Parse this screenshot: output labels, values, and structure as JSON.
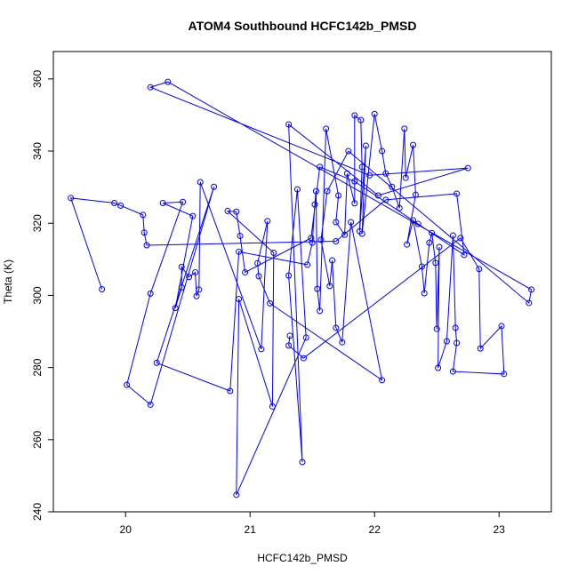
{
  "chart_data": {
    "type": "line",
    "title": "ATOM4 Southbound HCFC142b_PMSD",
    "x_label": "HCFC142b_PMSD",
    "y_label": "Theta (K)",
    "x": [
      19.81,
      19.56,
      19.91,
      19.96,
      20.14,
      20.15,
      20.17,
      21.69,
      22.09,
      22.66,
      22.72,
      22.35,
      21.84,
      21.56,
      21.49,
      20.96,
      20.92,
      20.89,
      20.82,
      21.19,
      21.18,
      20.91,
      20.89,
      21.45,
      21.38,
      21.31,
      21.42,
      21.31,
      22.03,
      22.75,
      21.96,
      20.2,
      20.34,
      23.26,
      23.24,
      21.79,
      21.62,
      21.57,
      21.64,
      21.66,
      21.69,
      21.74,
      21.81,
      22.06,
      21.16,
      21.07,
      21.06,
      21.14,
      21.09,
      20.6,
      20.59,
      20.57,
      20.56,
      20.51,
      20.45,
      20.45,
      20.4,
      20.54,
      20.3,
      20.46,
      20.2,
      20.01,
      20.2,
      20.71,
      20.25,
      20.84,
      20.91,
      21.46,
      21.5,
      21.52,
      21.53,
      21.54,
      21.56,
      21.61,
      21.71,
      21.69,
      21.76,
      21.78,
      21.84,
      21.84,
      21.89,
      21.9,
      21.88,
      21.93,
      21.9,
      22.0,
      22.06,
      22.09,
      22.14,
      22.2,
      22.24,
      22.25,
      22.31,
      22.33,
      22.26,
      22.31,
      22.38,
      22.4,
      22.44,
      22.46,
      22.49,
      22.5,
      22.52,
      22.51,
      22.58,
      22.63,
      22.65,
      22.66,
      22.63,
      23.04,
      23.02,
      22.85,
      22.84,
      22.69,
      21.43,
      21.31,
      21.32
    ],
    "series": [
      {
        "color": "#0000ff",
        "values": [
          301.7,
          327.0,
          325.6,
          324.9,
          322.3,
          317.4,
          313.9,
          315.0,
          326.5,
          328.2,
          311.2,
          319.8,
          331.6,
          335.6,
          315.9,
          306.4,
          316.5,
          323.2,
          323.4,
          311.8,
          269.2,
          299.0,
          244.7,
          288.3,
          329.4,
          305.5,
          253.8,
          347.4,
          327.7,
          335.3,
          333.3,
          357.7,
          359.2,
          301.6,
          297.9,
          340.0,
          328.9,
          315.4,
          302.6,
          309.7,
          291.0,
          287.0,
          320.3,
          276.5,
          297.8,
          305.3,
          308.9,
          320.6,
          285.1,
          331.4,
          301.6,
          299.8,
          306.4,
          305.1,
          307.9,
          302.2,
          296.5,
          322.0,
          325.6,
          325.9,
          300.5,
          275.2,
          269.7,
          330.1,
          281.3,
          273.5,
          312.1,
          308.5,
          314.6,
          325.2,
          328.9,
          301.8,
          295.7,
          346.2,
          327.7,
          320.3,
          316.8,
          333.8,
          325.5,
          349.9,
          348.6,
          335.6,
          317.8,
          341.5,
          317.1,
          350.3,
          340.0,
          333.8,
          330.1,
          324.2,
          346.2,
          332.6,
          341.7,
          327.9,
          314.1,
          320.8,
          308.0,
          300.6,
          314.6,
          317.3,
          309.0,
          290.7,
          313.4,
          279.9,
          287.3,
          316.6,
          291.0,
          286.8,
          278.9,
          278.2,
          291.5,
          285.3,
          307.3,
          315.9,
          282.6,
          286.1,
          288.8
        ]
      }
    ],
    "xlim": [
      19.42,
      23.42
    ],
    "ylim": [
      240,
      367.6
    ],
    "xticks": [
      20,
      21,
      22,
      23
    ],
    "yticks": [
      240,
      260,
      280,
      300,
      320,
      340,
      360
    ],
    "markers": true
  }
}
